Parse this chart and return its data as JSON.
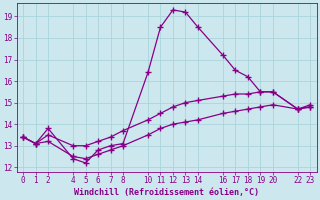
{
  "xlabel": "Windchill (Refroidissement éolien,°C)",
  "bg_color": "#cce8ee",
  "grid_color": "#aad4dc",
  "line_color": "#880088",
  "spine_color": "#880088",
  "xlim": [
    -0.5,
    23.5
  ],
  "ylim": [
    11.8,
    19.6
  ],
  "yticks": [
    12,
    13,
    14,
    15,
    16,
    17,
    18,
    19
  ],
  "xticks": [
    0,
    1,
    2,
    4,
    5,
    6,
    7,
    8,
    10,
    11,
    12,
    13,
    14,
    16,
    17,
    18,
    19,
    20,
    22,
    23
  ],
  "line1_x": [
    0,
    1,
    2,
    4,
    5,
    6,
    7,
    8,
    10,
    11,
    12,
    13,
    14,
    16,
    17,
    18,
    19,
    20,
    22,
    23
  ],
  "line1_y": [
    13.4,
    13.1,
    13.8,
    12.4,
    12.2,
    12.8,
    13.0,
    13.1,
    16.4,
    18.5,
    19.3,
    19.2,
    18.5,
    17.2,
    16.5,
    16.2,
    15.5,
    15.5,
    14.7,
    14.9
  ],
  "line2_x": [
    0,
    1,
    2,
    4,
    5,
    6,
    7,
    8,
    10,
    11,
    12,
    13,
    14,
    16,
    17,
    18,
    19,
    20,
    22,
    23
  ],
  "line2_y": [
    13.4,
    13.1,
    13.5,
    13.0,
    13.0,
    13.2,
    13.4,
    13.7,
    14.2,
    14.5,
    14.8,
    15.0,
    15.1,
    15.3,
    15.4,
    15.4,
    15.5,
    15.5,
    14.7,
    14.8
  ],
  "line3_x": [
    0,
    1,
    2,
    4,
    5,
    6,
    7,
    8,
    10,
    11,
    12,
    13,
    14,
    16,
    17,
    18,
    19,
    20,
    22,
    23
  ],
  "line3_y": [
    13.4,
    13.1,
    13.2,
    12.5,
    12.4,
    12.6,
    12.8,
    13.0,
    13.5,
    13.8,
    14.0,
    14.1,
    14.2,
    14.5,
    14.6,
    14.7,
    14.8,
    14.9,
    14.7,
    14.8
  ],
  "marker": "+",
  "markersize": 4,
  "linewidth": 0.9,
  "xlabel_color": "#880088",
  "tick_color": "#880088",
  "label_fontsize": 6,
  "tick_fontsize": 5.5
}
